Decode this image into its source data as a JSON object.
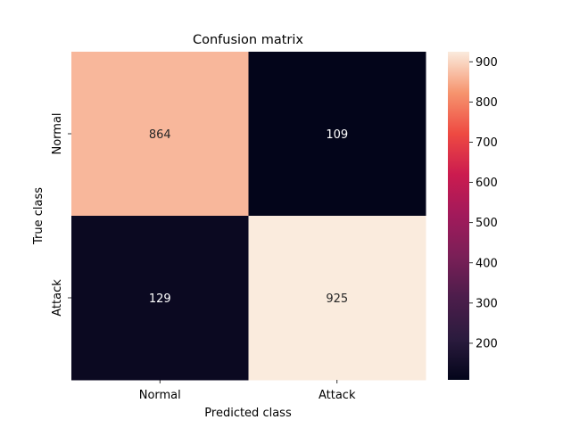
{
  "chart_data": {
    "type": "heatmap",
    "title": "Confusion matrix",
    "xlabel": "Predicted class",
    "ylabel": "True class",
    "x_categories": [
      "Normal",
      "Attack"
    ],
    "y_categories": [
      "Normal",
      "Attack"
    ],
    "values": [
      [
        864,
        109
      ],
      [
        129,
        925
      ]
    ],
    "colorbar": {
      "min": 109,
      "max": 925,
      "ticks": [
        200,
        300,
        400,
        500,
        600,
        700,
        800,
        900
      ],
      "colormap": "rocket"
    },
    "annotation_colors": {
      "light_cell": "#262626",
      "dark_cell": "#ffffff"
    }
  }
}
